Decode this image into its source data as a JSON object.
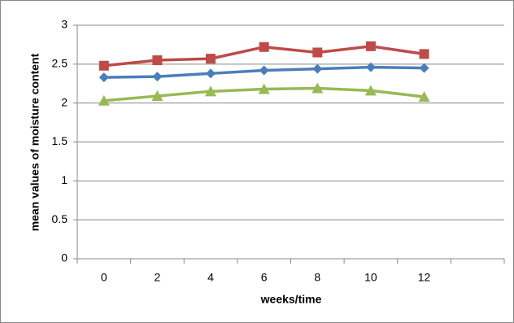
{
  "chart_data": {
    "type": "line",
    "x_label": "weeks/time",
    "y_label": "mean values of moisture content",
    "categories": [
      "0",
      "2",
      "4",
      "6",
      "8",
      "10",
      "12",
      null
    ],
    "series": [
      {
        "color": "#4a7ebb",
        "marker": "diamond",
        "values": [
          2.33,
          2.34,
          2.38,
          2.42,
          2.44,
          2.46,
          2.45,
          null
        ]
      },
      {
        "color": "#be4b48",
        "marker": "square",
        "values": [
          2.48,
          2.55,
          2.57,
          2.72,
          2.65,
          2.73,
          2.63,
          null
        ]
      },
      {
        "color": "#98b954",
        "marker": "triangle",
        "values": [
          2.03,
          2.09,
          2.15,
          2.18,
          2.19,
          2.16,
          2.08,
          null
        ]
      }
    ],
    "ylim": [
      0,
      3
    ],
    "yticks": [
      0,
      0.5,
      1,
      1.5,
      2,
      2.5,
      3
    ],
    "grid": true
  }
}
